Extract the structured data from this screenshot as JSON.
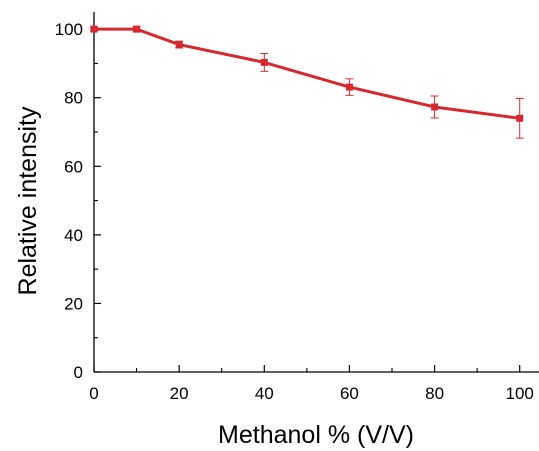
{
  "chart_data": {
    "type": "line",
    "xlabel": "Methanol % (V/V)",
    "ylabel": "Relative intensity",
    "xlim": [
      0,
      105
    ],
    "ylim": [
      0,
      105
    ],
    "x_ticks": [
      0,
      20,
      40,
      60,
      80,
      100
    ],
    "y_ticks": [
      0,
      20,
      40,
      60,
      80,
      100
    ],
    "grid": false,
    "series": [
      {
        "x": [
          0,
          10,
          20,
          40,
          60,
          80,
          100
        ],
        "y": [
          100,
          100,
          95.5,
          90.3,
          83.1,
          77.3,
          74.0
        ],
        "error": [
          0.5,
          0.8,
          1.0,
          2.6,
          2.4,
          3.2,
          5.8
        ],
        "color": "#d42a2f",
        "marker": "square"
      }
    ]
  }
}
